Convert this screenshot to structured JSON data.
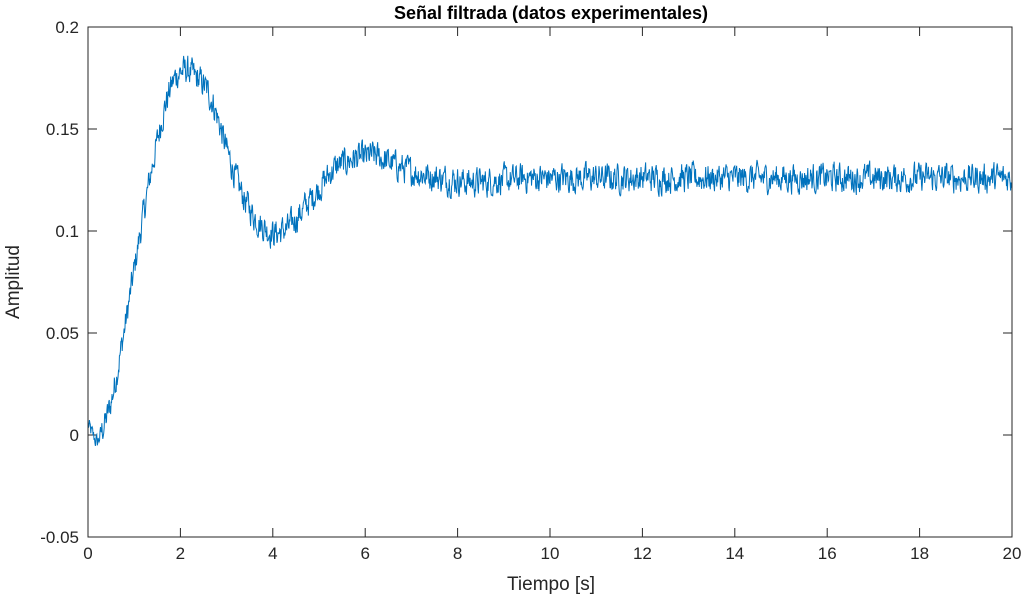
{
  "chart_data": {
    "type": "line",
    "title": "Señal filtrada (datos experimentales)",
    "xlabel": "Tiempo [s]",
    "ylabel": "Amplitud",
    "xlim": [
      0,
      20
    ],
    "ylim": [
      -0.05,
      0.2
    ],
    "xticks": [
      0,
      2,
      4,
      6,
      8,
      10,
      12,
      14,
      16,
      18,
      20
    ],
    "xtick_labels": [
      "0",
      "2",
      "4",
      "6",
      "8",
      "10",
      "12",
      "14",
      "16",
      "18",
      "20"
    ],
    "yticks": [
      -0.05,
      0,
      0.05,
      0.1,
      0.15,
      0.2
    ],
    "ytick_labels": [
      "-0.05",
      "0",
      "0.05",
      "0.1",
      "0.15",
      "0.2"
    ],
    "grid": false,
    "line_color": "#0072BD",
    "series": [
      {
        "x": [
          0,
          0.1,
          0.2,
          0.3,
          0.4,
          0.5,
          0.6,
          0.7,
          0.8,
          0.9,
          1.0,
          1.1,
          1.2,
          1.3,
          1.4,
          1.5,
          1.6,
          1.7,
          1.8,
          1.9,
          2.0,
          2.1,
          2.2,
          2.3,
          2.4,
          2.5,
          2.6,
          2.7,
          2.8,
          2.9,
          3.0,
          3.1,
          3.2,
          3.3,
          3.4,
          3.5,
          3.6,
          3.7,
          3.8,
          3.9,
          4.0,
          4.1,
          4.2,
          4.3,
          4.4,
          4.5,
          4.6,
          4.7,
          4.8,
          4.9,
          5.0,
          5.1,
          5.2,
          5.3,
          5.4,
          5.5,
          5.6,
          5.7,
          5.8,
          5.9,
          6.0,
          6.1,
          6.2,
          6.3,
          6.4,
          6.5,
          6.6,
          6.7,
          6.8,
          6.9,
          7.0,
          7.2,
          7.4,
          7.6,
          7.8,
          8.0,
          8.2,
          8.4,
          8.6,
          8.8,
          9.0,
          9.2,
          9.4,
          9.6,
          9.8,
          10.0,
          10.5,
          11.0,
          11.5,
          12.0,
          12.5,
          13.0,
          13.5,
          14.0,
          14.5,
          15.0,
          15.5,
          16.0,
          16.5,
          17.0,
          17.5,
          18.0,
          18.5,
          19.0,
          19.5,
          20.0
        ],
        "values": [
          0.005,
          0.0,
          -0.004,
          0.002,
          0.008,
          0.016,
          0.027,
          0.04,
          0.053,
          0.067,
          0.081,
          0.095,
          0.108,
          0.121,
          0.133,
          0.144,
          0.155,
          0.164,
          0.171,
          0.176,
          0.178,
          0.179,
          0.178,
          0.176,
          0.174,
          0.172,
          0.168,
          0.163,
          0.156,
          0.148,
          0.14,
          0.133,
          0.126,
          0.12,
          0.115,
          0.111,
          0.107,
          0.104,
          0.102,
          0.1,
          0.099,
          0.099,
          0.1,
          0.101,
          0.103,
          0.106,
          0.109,
          0.112,
          0.115,
          0.118,
          0.121,
          0.124,
          0.127,
          0.13,
          0.132,
          0.133,
          0.134,
          0.135,
          0.136,
          0.136,
          0.136,
          0.137,
          0.137,
          0.136,
          0.135,
          0.134,
          0.133,
          0.132,
          0.131,
          0.13,
          0.129,
          0.128,
          0.127,
          0.126,
          0.125,
          0.125,
          0.124,
          0.124,
          0.124,
          0.125,
          0.125,
          0.125,
          0.126,
          0.126,
          0.126,
          0.126,
          0.126,
          0.126,
          0.126,
          0.126,
          0.126,
          0.126,
          0.126,
          0.126,
          0.126,
          0.126,
          0.126,
          0.126,
          0.126,
          0.126,
          0.126,
          0.126,
          0.126,
          0.126,
          0.126,
          0.126
        ]
      }
    ]
  }
}
